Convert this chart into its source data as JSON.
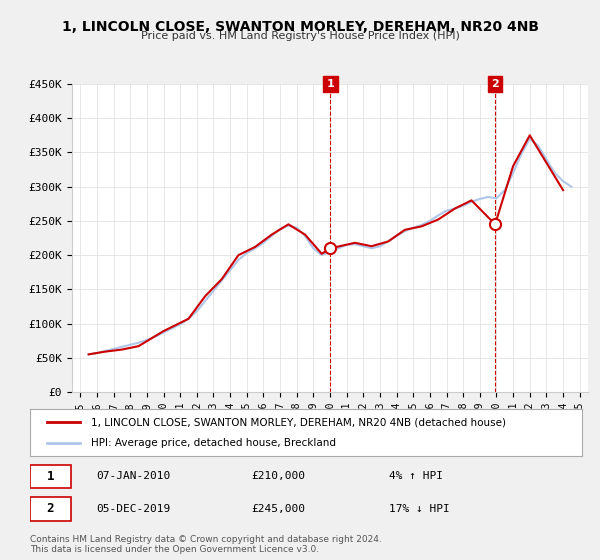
{
  "title": "1, LINCOLN CLOSE, SWANTON MORLEY, DEREHAM, NR20 4NB",
  "subtitle": "Price paid vs. HM Land Registry's House Price Index (HPI)",
  "xlabel": "",
  "ylabel": "",
  "ylim": [
    0,
    450000
  ],
  "yticks": [
    0,
    50000,
    100000,
    150000,
    200000,
    250000,
    300000,
    350000,
    400000,
    450000
  ],
  "ytick_labels": [
    "£0",
    "£50K",
    "£100K",
    "£150K",
    "£200K",
    "£250K",
    "£300K",
    "£350K",
    "£400K",
    "£450K"
  ],
  "xtick_years": [
    "1995",
    "1996",
    "1997",
    "1998",
    "1999",
    "2000",
    "2001",
    "2002",
    "2003",
    "2004",
    "2005",
    "2006",
    "2007",
    "2008",
    "2009",
    "2010",
    "2011",
    "2012",
    "2013",
    "2014",
    "2015",
    "2016",
    "2017",
    "2018",
    "2019",
    "2020",
    "2021",
    "2022",
    "2023",
    "2024",
    "2025"
  ],
  "hpi_color": "#aec6e8",
  "price_color": "#cc0000",
  "annotation_box_color": "#cc0000",
  "vline_color": "#cc0000",
  "background_color": "#f0f0f0",
  "plot_bg_color": "#ffffff",
  "legend_label_red": "1, LINCOLN CLOSE, SWANTON MORLEY, DEREHAM, NR20 4NB (detached house)",
  "legend_label_blue": "HPI: Average price, detached house, Breckland",
  "annotation1_num": "1",
  "annotation1_date": "07-JAN-2010",
  "annotation1_price": "£210,000",
  "annotation1_hpi": "4% ↑ HPI",
  "annotation1_year": 2010.03,
  "annotation1_value": 210000,
  "annotation2_num": "2",
  "annotation2_date": "05-DEC-2019",
  "annotation2_price": "£245,000",
  "annotation2_hpi": "17% ↓ HPI",
  "annotation2_year": 2019.92,
  "annotation2_value": 245000,
  "footnote": "Contains HM Land Registry data © Crown copyright and database right 2024.\nThis data is licensed under the Open Government Licence v3.0.",
  "hpi_data": {
    "years": [
      1995.5,
      1996.0,
      1996.5,
      1997.0,
      1997.5,
      1998.0,
      1998.5,
      1999.0,
      1999.5,
      2000.0,
      2000.5,
      2001.0,
      2001.5,
      2002.0,
      2002.5,
      2003.0,
      2003.5,
      2004.0,
      2004.5,
      2005.0,
      2005.5,
      2006.0,
      2006.5,
      2007.0,
      2007.5,
      2008.0,
      2008.5,
      2009.0,
      2009.5,
      2010.0,
      2010.5,
      2011.0,
      2011.5,
      2012.0,
      2012.5,
      2013.0,
      2013.5,
      2014.0,
      2014.5,
      2015.0,
      2015.5,
      2016.0,
      2016.5,
      2017.0,
      2017.5,
      2018.0,
      2018.5,
      2019.0,
      2019.5,
      2020.0,
      2020.5,
      2021.0,
      2021.5,
      2022.0,
      2022.5,
      2023.0,
      2023.5,
      2024.0,
      2024.5
    ],
    "values": [
      55000,
      57000,
      60000,
      63000,
      66000,
      69000,
      72000,
      76000,
      81000,
      87000,
      93000,
      99000,
      107000,
      118000,
      133000,
      148000,
      163000,
      178000,
      193000,
      203000,
      210000,
      218000,
      228000,
      238000,
      243000,
      240000,
      228000,
      210000,
      200000,
      205000,
      210000,
      215000,
      216000,
      213000,
      210000,
      213000,
      220000,
      228000,
      235000,
      240000,
      244000,
      250000,
      258000,
      265000,
      268000,
      272000,
      278000,
      282000,
      285000,
      283000,
      295000,
      320000,
      348000,
      370000,
      360000,
      340000,
      320000,
      308000,
      300000
    ]
  },
  "price_data": {
    "years": [
      1995.5,
      1996.5,
      1997.5,
      1998.5,
      2000.0,
      2001.5,
      2002.5,
      2003.5,
      2004.5,
      2005.5,
      2006.5,
      2007.5,
      2008.5,
      2009.5,
      2010.03,
      2011.5,
      2012.5,
      2013.5,
      2014.5,
      2015.5,
      2016.5,
      2017.5,
      2018.5,
      2019.92,
      2021.0,
      2022.0,
      2023.0,
      2024.0
    ],
    "values": [
      55000,
      59000,
      62000,
      67000,
      89000,
      107000,
      140000,
      165000,
      200000,
      212000,
      230000,
      245000,
      230000,
      202000,
      210000,
      218000,
      213000,
      220000,
      237000,
      242000,
      252000,
      268000,
      280000,
      245000,
      330000,
      375000,
      335000,
      295000
    ]
  }
}
